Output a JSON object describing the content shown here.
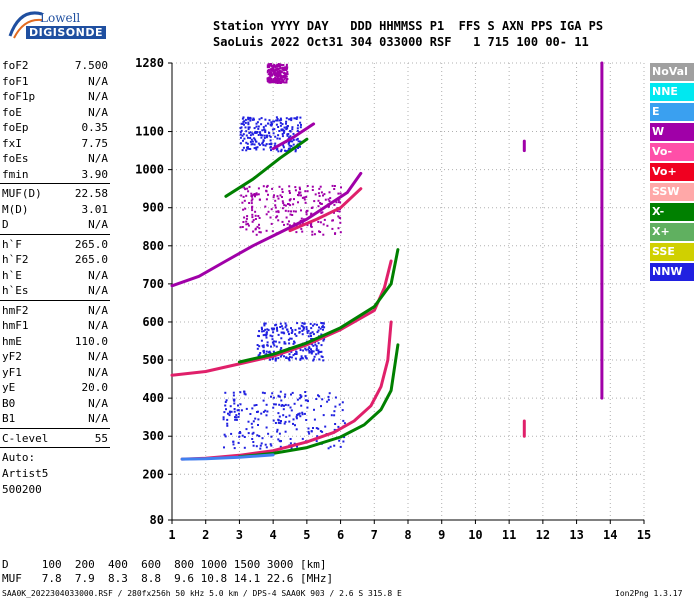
{
  "logo": {
    "line1": "Lowell",
    "line2": "DIGISONDE"
  },
  "header": {
    "row1": "Station YYYY DAY   DDD HHMMSS P1  FFS S AXN PPS IGA PS",
    "row2": "SaoLuis 2022 Oct31 304 033000 RSF   1 715 100 00- 11"
  },
  "params": [
    {
      "group": [
        {
          "k": "foF2",
          "v": "7.500"
        },
        {
          "k": "foF1",
          "v": "N/A"
        },
        {
          "k": "foF1p",
          "v": "N/A"
        },
        {
          "k": "foE",
          "v": "N/A"
        },
        {
          "k": "foEp",
          "v": "0.35"
        },
        {
          "k": "fxI",
          "v": "7.75"
        },
        {
          "k": "foEs",
          "v": "N/A"
        },
        {
          "k": "fmin",
          "v": "3.90"
        }
      ]
    },
    {
      "group": [
        {
          "k": "MUF(D)",
          "v": "22.58"
        },
        {
          "k": "M(D)",
          "v": "3.01"
        },
        {
          "k": "D",
          "v": "N/A"
        }
      ]
    },
    {
      "group": [
        {
          "k": "h`F",
          "v": "265.0"
        },
        {
          "k": "h`F2",
          "v": "265.0"
        },
        {
          "k": "h`E",
          "v": "N/A"
        },
        {
          "k": "h`Es",
          "v": "N/A"
        }
      ]
    },
    {
      "group": [
        {
          "k": "hmF2",
          "v": "N/A"
        },
        {
          "k": "hmF1",
          "v": "N/A"
        },
        {
          "k": "hmE",
          "v": "110.0"
        },
        {
          "k": "yF2",
          "v": "N/A"
        },
        {
          "k": "yF1",
          "v": "N/A"
        },
        {
          "k": "yE",
          "v": "20.0"
        },
        {
          "k": "B0",
          "v": "N/A"
        },
        {
          "k": "B1",
          "v": "N/A"
        }
      ]
    },
    {
      "group": [
        {
          "k": "C-level",
          "v": "55"
        }
      ]
    }
  ],
  "auto": {
    "line1": "Auto:",
    "line2": "Artist5",
    "line3": "500200"
  },
  "legend": [
    {
      "label": "NoVal",
      "color": "#a0a0a0"
    },
    {
      "label": "NNE",
      "color": "#00e8f0"
    },
    {
      "label": "E",
      "color": "#3aa0f0"
    },
    {
      "label": "W",
      "color": "#a000a8"
    },
    {
      "label": "Vo-",
      "color": "#ff4fa8"
    },
    {
      "label": "Vo+",
      "color": "#f00020"
    },
    {
      "label": "SSW",
      "color": "#ffa8a8"
    },
    {
      "label": "X-",
      "color": "#008000"
    },
    {
      "label": "X+",
      "color": "#60b060"
    },
    {
      "label": "SSE",
      "color": "#d0d000"
    },
    {
      "label": "NNW",
      "color": "#2020e0"
    }
  ],
  "bottom": {
    "d_row": "D     100  200  400  600  800 1000 1500 3000 [km]",
    "muf_row": "MUF   7.8  7.9  8.3  8.8  9.6 10.8 14.1 22.6 [MHz]"
  },
  "footer": {
    "left": "SAA0K_2022304033000.RSF / 280fx256h 50 kHz 5.0 km / DPS-4 SAA0K 903 / 2.6 S 315.8 E",
    "right": "Ion2Png 1.3.17"
  },
  "chart_data": {
    "type": "scatter",
    "xlim": [
      1,
      15
    ],
    "ylim": [
      80,
      1280
    ],
    "x_ticks": [
      "1",
      "2",
      "3",
      "4",
      "5",
      "6",
      "7",
      "8",
      "9",
      "10",
      "11",
      "12",
      "13",
      "14",
      "15"
    ],
    "y_ticks": [
      {
        "value": 80,
        "label": "80"
      },
      {
        "value": 200,
        "label": "200"
      },
      {
        "value": 300,
        "label": "300"
      },
      {
        "value": 400,
        "label": "400"
      },
      {
        "value": 500,
        "label": "500"
      },
      {
        "value": 600,
        "label": "600"
      },
      {
        "value": 700,
        "label": "700"
      },
      {
        "value": 800,
        "label": "800"
      },
      {
        "value": 900,
        "label": "900"
      },
      {
        "value": 1000,
        "label": "1000"
      },
      {
        "value": 1100,
        "label": "1100"
      },
      {
        "value": 1280,
        "label": "1280"
      }
    ],
    "grid": "dotted",
    "traces": [
      {
        "name": "Vo-",
        "kind": "line",
        "color": "#e0206a",
        "x": [
          1.3,
          2.0,
          3.0,
          4.0,
          5.0,
          5.8,
          6.4,
          6.9,
          7.2,
          7.4,
          7.5
        ],
        "y": [
          240,
          242,
          250,
          262,
          285,
          310,
          340,
          380,
          430,
          500,
          600
        ]
      },
      {
        "name": "X-",
        "kind": "line",
        "color": "#008000",
        "x": [
          3.0,
          4.0,
          5.0,
          6.0,
          6.7,
          7.2,
          7.5,
          7.7
        ],
        "y": [
          246,
          255,
          270,
          298,
          330,
          370,
          420,
          540
        ]
      },
      {
        "name": "E",
        "kind": "line",
        "color": "#4080f0",
        "x": [
          1.3,
          2.0,
          3.0,
          4.0
        ],
        "y": [
          240,
          241,
          245,
          251
        ]
      },
      {
        "name": "Vo-",
        "kind": "line",
        "color": "#e0206a",
        "x": [
          1.0,
          2.0,
          3.0,
          4.0,
          5.0,
          6.0,
          7.0,
          7.3,
          7.5
        ],
        "y": [
          460,
          470,
          490,
          510,
          540,
          580,
          630,
          690,
          760
        ]
      },
      {
        "name": "X-",
        "kind": "line",
        "color": "#008000",
        "x": [
          3.0,
          4.0,
          5.0,
          6.0,
          7.0,
          7.5,
          7.7
        ],
        "y": [
          495,
          515,
          545,
          585,
          640,
          700,
          790
        ]
      },
      {
        "name": "W",
        "kind": "line",
        "color": "#a000a8",
        "x": [
          1.0,
          1.8,
          2.6,
          3.4,
          4.2,
          5.0,
          5.6,
          6.2,
          6.6
        ],
        "y": [
          695,
          720,
          760,
          800,
          835,
          870,
          905,
          940,
          990
        ]
      },
      {
        "name": "Vo-",
        "kind": "line",
        "color": "#e0206a",
        "x": [
          4.5,
          5.3,
          6.0,
          6.6
        ],
        "y": [
          840,
          870,
          900,
          950
        ]
      },
      {
        "name": "X-",
        "kind": "line",
        "color": "#008000",
        "x": [
          2.6,
          3.4,
          4.2,
          5.0
        ],
        "y": [
          930,
          975,
          1030,
          1080
        ]
      },
      {
        "name": "W",
        "kind": "line",
        "color": "#a000a8",
        "x": [
          4.0,
          4.6,
          5.2
        ],
        "y": [
          1055,
          1085,
          1120
        ]
      },
      {
        "name": "W",
        "kind": "line",
        "color": "#a000a8",
        "x": [
          13.75,
          13.75
        ],
        "y": [
          400,
          1280
        ]
      },
      {
        "name": "W",
        "kind": "line",
        "color": "#a000a8",
        "x": [
          11.45,
          11.45
        ],
        "y": [
          1050,
          1075
        ]
      },
      {
        "name": "Vo-",
        "kind": "line",
        "color": "#e0206a",
        "x": [
          11.45,
          11.45
        ],
        "y": [
          300,
          340
        ]
      }
    ],
    "clouds": [
      {
        "name": "NNW",
        "color": "#2020e0",
        "x0": 2.5,
        "x1": 6.2,
        "y0": 270,
        "y1": 420
      },
      {
        "name": "NNW",
        "color": "#2020e0",
        "x0": 3.5,
        "x1": 5.5,
        "y0": 500,
        "y1": 600
      },
      {
        "name": "W",
        "color": "#a000a8",
        "x0": 3.0,
        "x1": 6.0,
        "y0": 830,
        "y1": 960
      },
      {
        "name": "NNW",
        "color": "#2020e0",
        "x0": 3.0,
        "x1": 4.8,
        "y0": 1050,
        "y1": 1140
      },
      {
        "name": "W",
        "color": "#a000a8",
        "x0": 3.8,
        "x1": 4.4,
        "y0": 1230,
        "y1": 1280
      }
    ]
  }
}
